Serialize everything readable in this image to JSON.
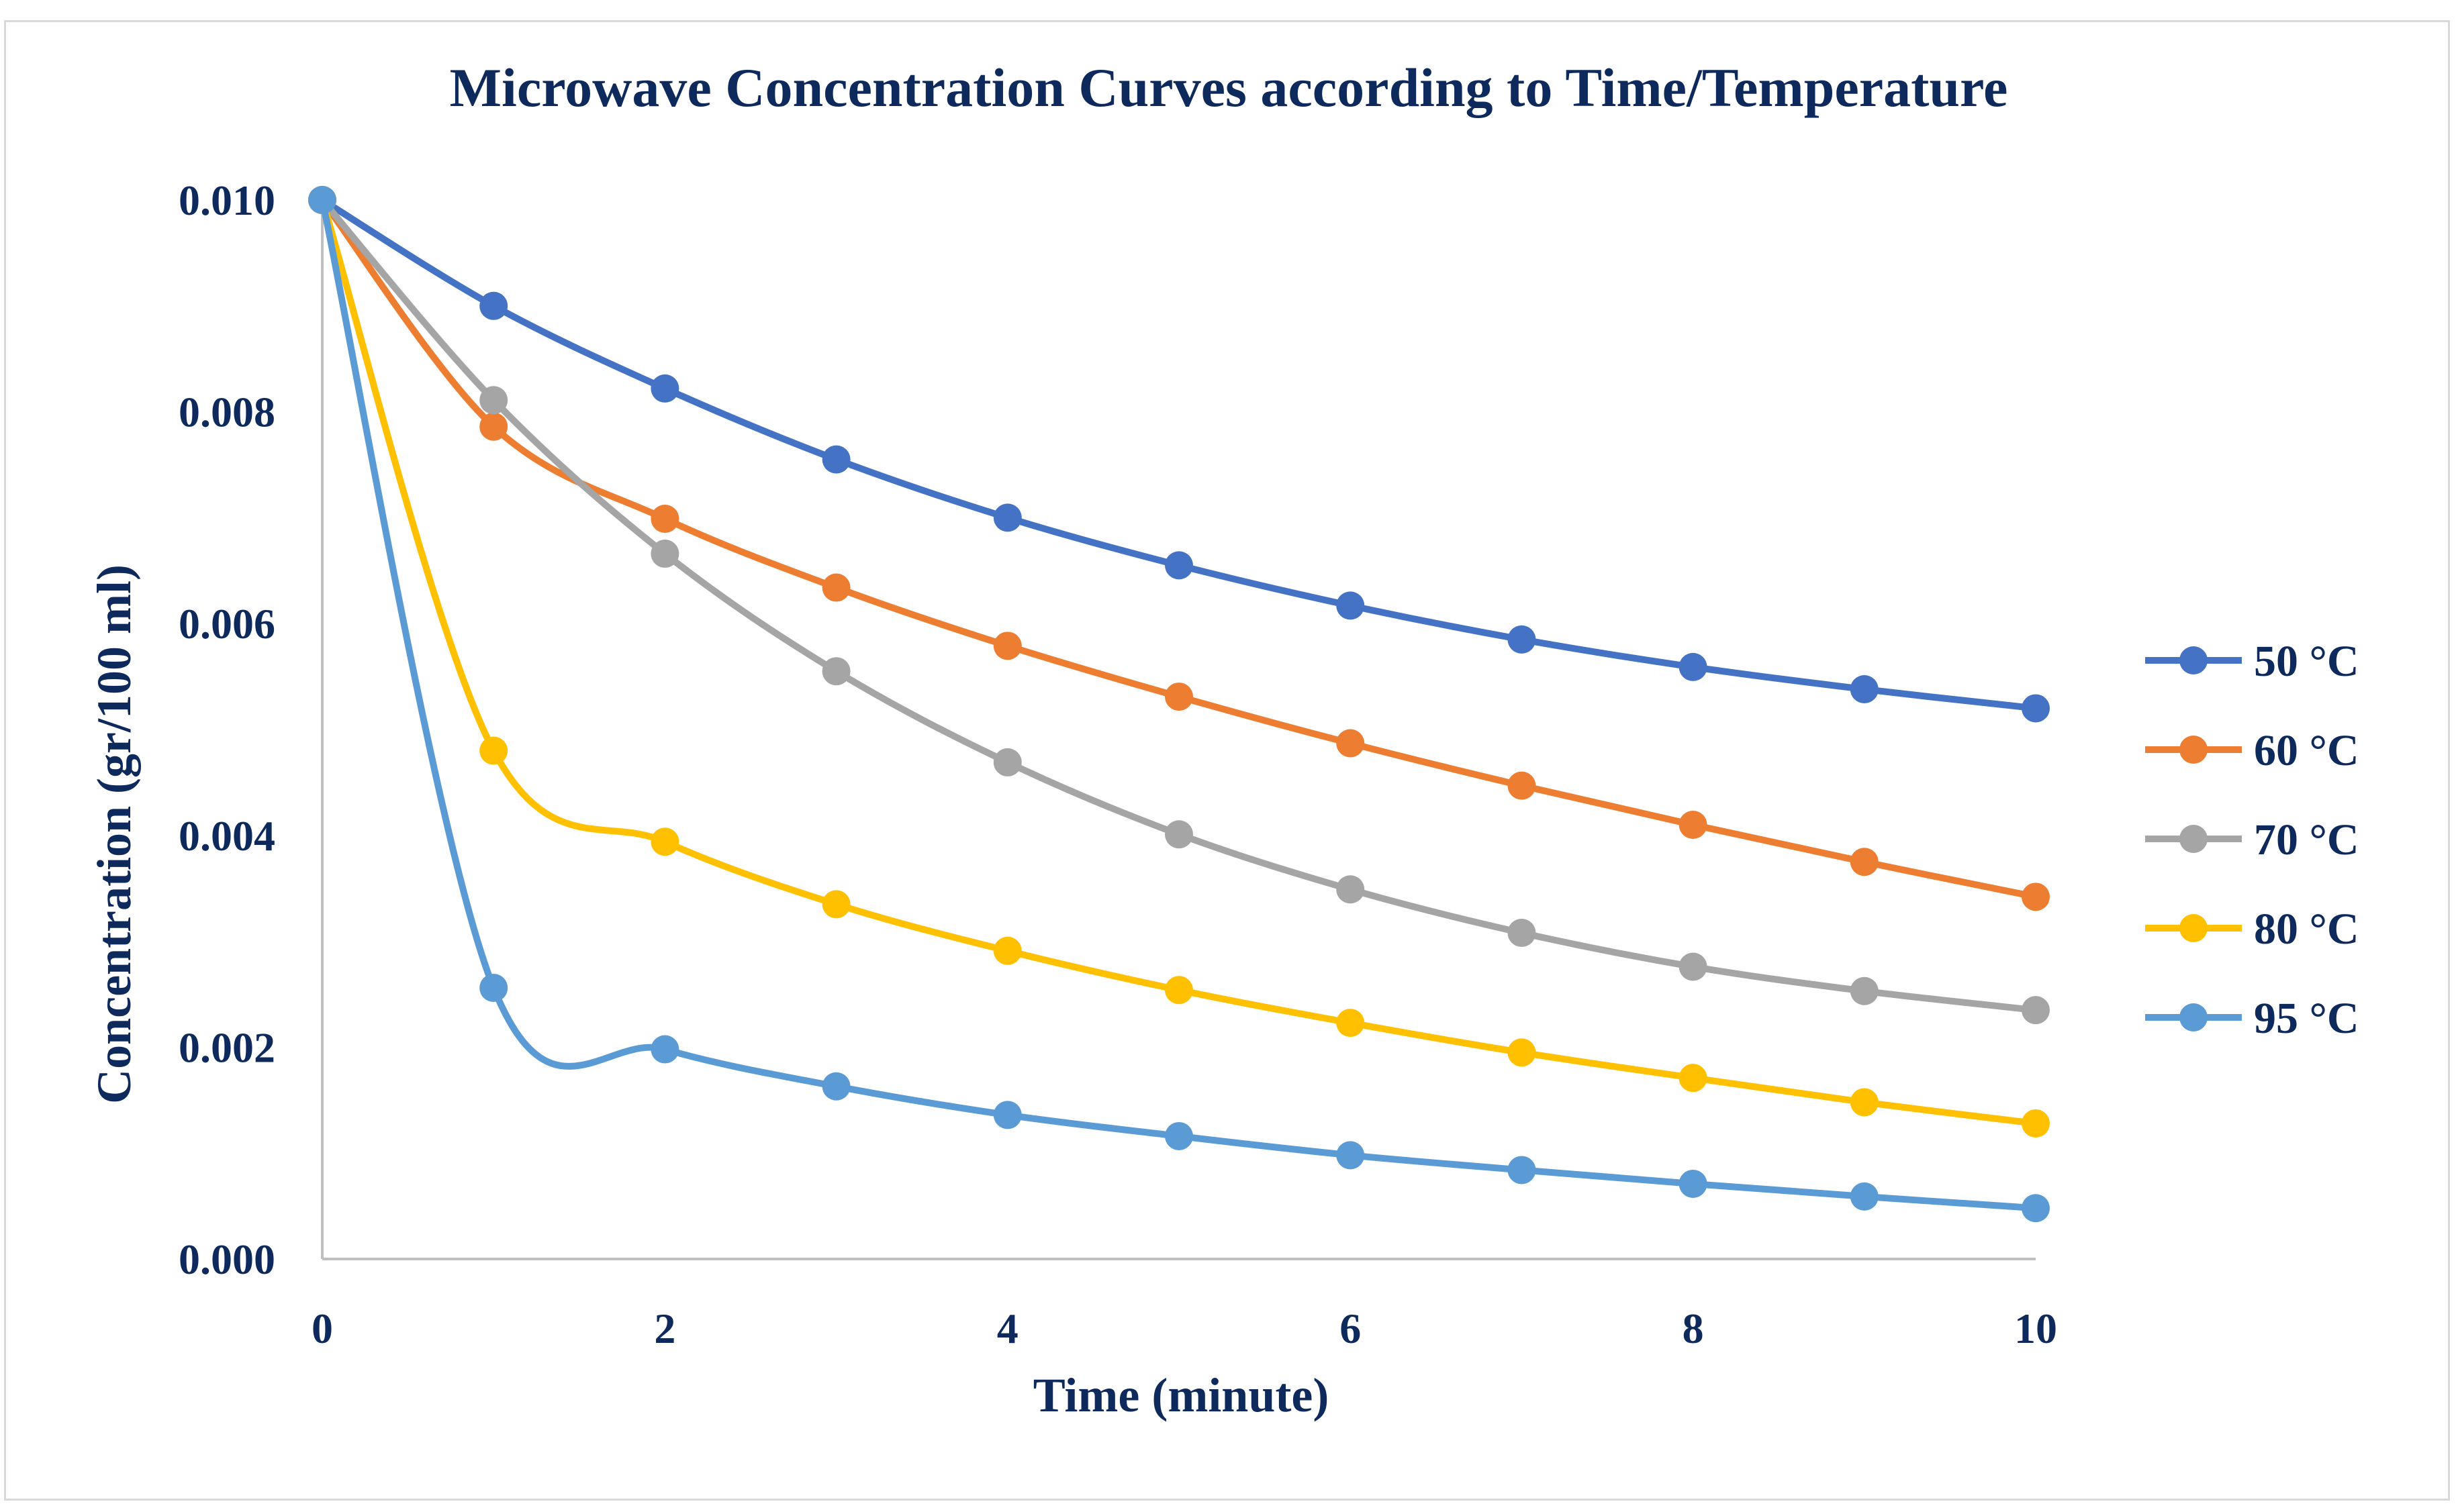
{
  "chart_data": {
    "type": "line",
    "title": "Microwave Concentration Curves according to Time/Temperature",
    "xlabel": "Time (minute)",
    "ylabel": "Concentration (gr/100 ml)",
    "xlim": [
      0,
      10
    ],
    "ylim": [
      0,
      0.01
    ],
    "x_ticks": [
      "0",
      "2",
      "4",
      "6",
      "8",
      "10"
    ],
    "y_ticks": [
      "0.000",
      "0.002",
      "0.004",
      "0.006",
      "0.008",
      "0.010"
    ],
    "grid": false,
    "legend_position": "right",
    "x": [
      0,
      1,
      2,
      3,
      4,
      5,
      6,
      7,
      8,
      9,
      10
    ],
    "series": [
      {
        "name": "50 °C",
        "color": "#4472c4",
        "values": [
          0.01,
          0.009,
          0.00822,
          0.00755,
          0.007,
          0.00655,
          0.00617,
          0.00585,
          0.00559,
          0.00538,
          0.0052
        ]
      },
      {
        "name": "60 °C",
        "color": "#ed7d31",
        "values": [
          0.01,
          0.00786,
          0.00699,
          0.00634,
          0.00579,
          0.00531,
          0.00487,
          0.00447,
          0.0041,
          0.00375,
          0.00342
        ]
      },
      {
        "name": "70 °C",
        "color": "#a5a5a5",
        "values": [
          0.01,
          0.00811,
          0.00666,
          0.00555,
          0.00469,
          0.00401,
          0.00349,
          0.00308,
          0.00276,
          0.00253,
          0.00235
        ]
      },
      {
        "name": "80 °C",
        "color": "#ffc000",
        "values": [
          0.01,
          0.0048,
          0.00394,
          0.00335,
          0.00291,
          0.00254,
          0.00223,
          0.00195,
          0.00171,
          0.00148,
          0.00128
        ]
      },
      {
        "name": "95 °C",
        "color": "#5b9bd5",
        "values": [
          0.01,
          0.00256,
          0.00198,
          0.00163,
          0.00136,
          0.00116,
          0.00098,
          0.00084,
          0.00071,
          0.00059,
          0.00048
        ]
      }
    ]
  }
}
